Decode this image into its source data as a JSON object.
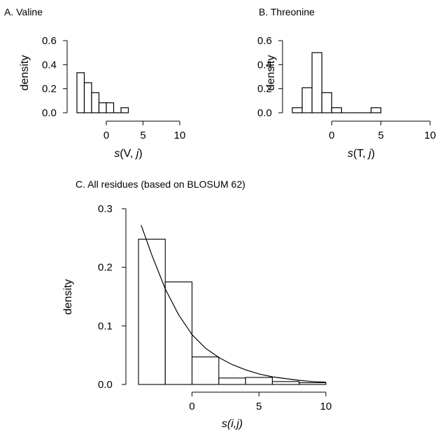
{
  "chart_data": [
    {
      "type": "bar",
      "panel": "A",
      "title": "A. Valine",
      "ylabel": "density",
      "xlabel_parts": [
        "s",
        "(V, ",
        "j",
        ")"
      ],
      "xlim": [
        -4,
        10
      ],
      "ylim": [
        0,
        0.6
      ],
      "xticks": [
        "0",
        "5",
        "10"
      ],
      "xtick_values": [
        0,
        5,
        10
      ],
      "yticks": [
        "0.0",
        "0.2",
        "0.4",
        "0.6"
      ],
      "ytick_values": [
        0,
        0.2,
        0.4,
        0.6
      ],
      "bin_width": 1,
      "bins": [
        {
          "x0": -4,
          "x1": -3,
          "value": 0.333
        },
        {
          "x0": -3,
          "x1": -2,
          "value": 0.25
        },
        {
          "x0": -2,
          "x1": -1,
          "value": 0.167
        },
        {
          "x0": -1,
          "x1": 0,
          "value": 0.083
        },
        {
          "x0": 0,
          "x1": 1,
          "value": 0.083
        },
        {
          "x0": 1,
          "x1": 2,
          "value": 0.0
        },
        {
          "x0": 2,
          "x1": 3,
          "value": 0.042
        }
      ]
    },
    {
      "type": "bar",
      "panel": "B",
      "title": "B. Threonine",
      "ylabel": "density",
      "xlabel_parts": [
        "s",
        "(T, ",
        "j",
        ")"
      ],
      "xlim": [
        -4,
        10
      ],
      "ylim": [
        0,
        0.6
      ],
      "xticks": [
        "0",
        "5",
        "10"
      ],
      "xtick_values": [
        0,
        5,
        10
      ],
      "yticks": [
        "0.0",
        "0.2",
        "0.4",
        "0.6"
      ],
      "ytick_values": [
        0,
        0.2,
        0.4,
        0.6
      ],
      "bin_width": 1,
      "bins": [
        {
          "x0": -4,
          "x1": -3,
          "value": 0.042
        },
        {
          "x0": -3,
          "x1": -2,
          "value": 0.208
        },
        {
          "x0": -2,
          "x1": -1,
          "value": 0.5
        },
        {
          "x0": -1,
          "x1": 0,
          "value": 0.167
        },
        {
          "x0": 0,
          "x1": 1,
          "value": 0.042
        },
        {
          "x0": 1,
          "x1": 2,
          "value": 0.0
        },
        {
          "x0": 2,
          "x1": 3,
          "value": 0.0
        },
        {
          "x0": 3,
          "x1": 4,
          "value": 0.0
        },
        {
          "x0": 4,
          "x1": 5,
          "value": 0.042
        }
      ]
    },
    {
      "type": "bar",
      "panel": "C",
      "title": "C. All residues (based on BLOSUM 62)",
      "ylabel": "density",
      "xlabel_parts": [
        "",
        "",
        "s(i,j)",
        ""
      ],
      "xlim": [
        -4,
        10
      ],
      "ylim": [
        0,
        0.3
      ],
      "xticks": [
        "0",
        "5",
        "10"
      ],
      "xtick_values": [
        0,
        5,
        10
      ],
      "yticks": [
        "0.0",
        "0.1",
        "0.2",
        "0.3"
      ],
      "ytick_values": [
        0,
        0.1,
        0.2,
        0.3
      ],
      "bin_width": 2,
      "bins": [
        {
          "x0": -4,
          "x1": -2,
          "value": 0.248
        },
        {
          "x0": -2,
          "x1": 0,
          "value": 0.175
        },
        {
          "x0": 0,
          "x1": 2,
          "value": 0.047
        },
        {
          "x0": 2,
          "x1": 4,
          "value": 0.011
        },
        {
          "x0": 4,
          "x1": 6,
          "value": 0.012
        },
        {
          "x0": 6,
          "x1": 8,
          "value": 0.005
        },
        {
          "x0": 8,
          "x1": 10,
          "value": 0.003
        }
      ],
      "fitted_curve": {
        "type": "exponential",
        "x": [
          -3.8,
          -3,
          -2,
          -1,
          0,
          1,
          2,
          3,
          4,
          5,
          6,
          7,
          8,
          9,
          10
        ],
        "y": [
          0.272,
          0.221,
          0.163,
          0.119,
          0.085,
          0.062,
          0.046,
          0.034,
          0.025,
          0.018,
          0.013,
          0.01,
          0.007,
          0.005,
          0.004
        ]
      }
    }
  ]
}
